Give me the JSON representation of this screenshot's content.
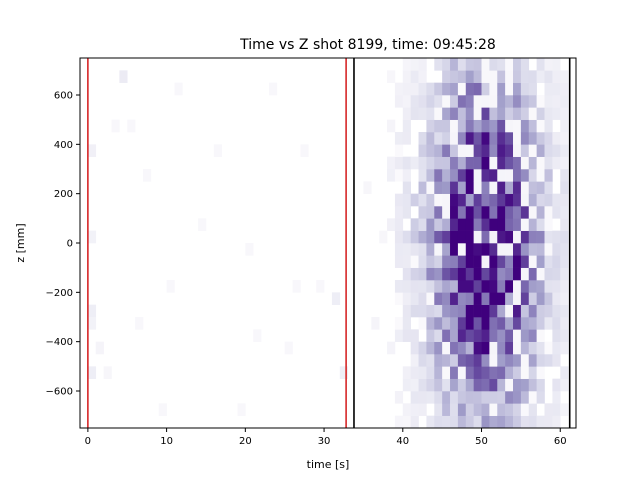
{
  "chart_data": {
    "type": "heatmap",
    "title": "Time vs Z shot 8199, time: 09:45:28",
    "xlabel": "time [s]",
    "ylabel": "z [mm]",
    "xlim": [
      -1,
      62
    ],
    "ylim": [
      -750,
      750
    ],
    "x_ticks": [
      0,
      10,
      20,
      30,
      40,
      50,
      60
    ],
    "y_ticks": [
      -600,
      -400,
      -200,
      0,
      200,
      400,
      600
    ],
    "x_tick_labels": [
      "0",
      "10",
      "20",
      "30",
      "40",
      "50",
      "60"
    ],
    "y_tick_labels": [
      "−600",
      "−400",
      "−200",
      "0",
      "200",
      "400",
      "600"
    ],
    "colormap": "Purples",
    "bin_width_s": 1,
    "bin_height_mm": 50,
    "vertical_lines": [
      {
        "x": 0.0,
        "color": "#d62728"
      },
      {
        "x": 32.8,
        "color": "#d62728"
      },
      {
        "x": 33.8,
        "color": "#000000"
      },
      {
        "x": 61.2,
        "color": "#000000"
      }
    ],
    "signal_region": {
      "t_start": 38,
      "t_end": 61,
      "t_peak": 50.5,
      "t_sigma": 5.2,
      "z_sigma": 520
    },
    "sparse_hits": [
      [
        4,
        650,
        0.12
      ],
      [
        0,
        350,
        0.08
      ],
      [
        0,
        0,
        0.07
      ],
      [
        0,
        -300,
        0.1
      ],
      [
        0,
        -350,
        0.07
      ],
      [
        0,
        -550,
        0.1
      ],
      [
        31,
        -250,
        0.1
      ],
      [
        32,
        -550,
        0.1
      ],
      [
        1,
        -450,
        0.05
      ],
      [
        2,
        -550,
        0.04
      ],
      [
        5,
        450,
        0.03
      ],
      [
        11,
        600,
        0.03
      ],
      [
        16,
        350,
        0.03
      ],
      [
        7,
        250,
        0.03
      ],
      [
        14,
        50,
        0.03
      ],
      [
        27,
        350,
        0.03
      ],
      [
        10,
        -200,
        0.03
      ],
      [
        21,
        -400,
        0.03
      ],
      [
        26,
        -200,
        0.03
      ],
      [
        29,
        -200,
        0.03
      ],
      [
        6,
        -350,
        0.03
      ],
      [
        19,
        -700,
        0.03
      ],
      [
        23,
        600,
        0.03
      ],
      [
        3,
        450,
        0.03
      ],
      [
        25,
        -450,
        0.03
      ],
      [
        20,
        -50,
        0.03
      ],
      [
        9,
        -700,
        0.03
      ],
      [
        37,
        0,
        0.04
      ],
      [
        36,
        -350,
        0.05
      ],
      [
        35,
        200,
        0.04
      ]
    ]
  }
}
